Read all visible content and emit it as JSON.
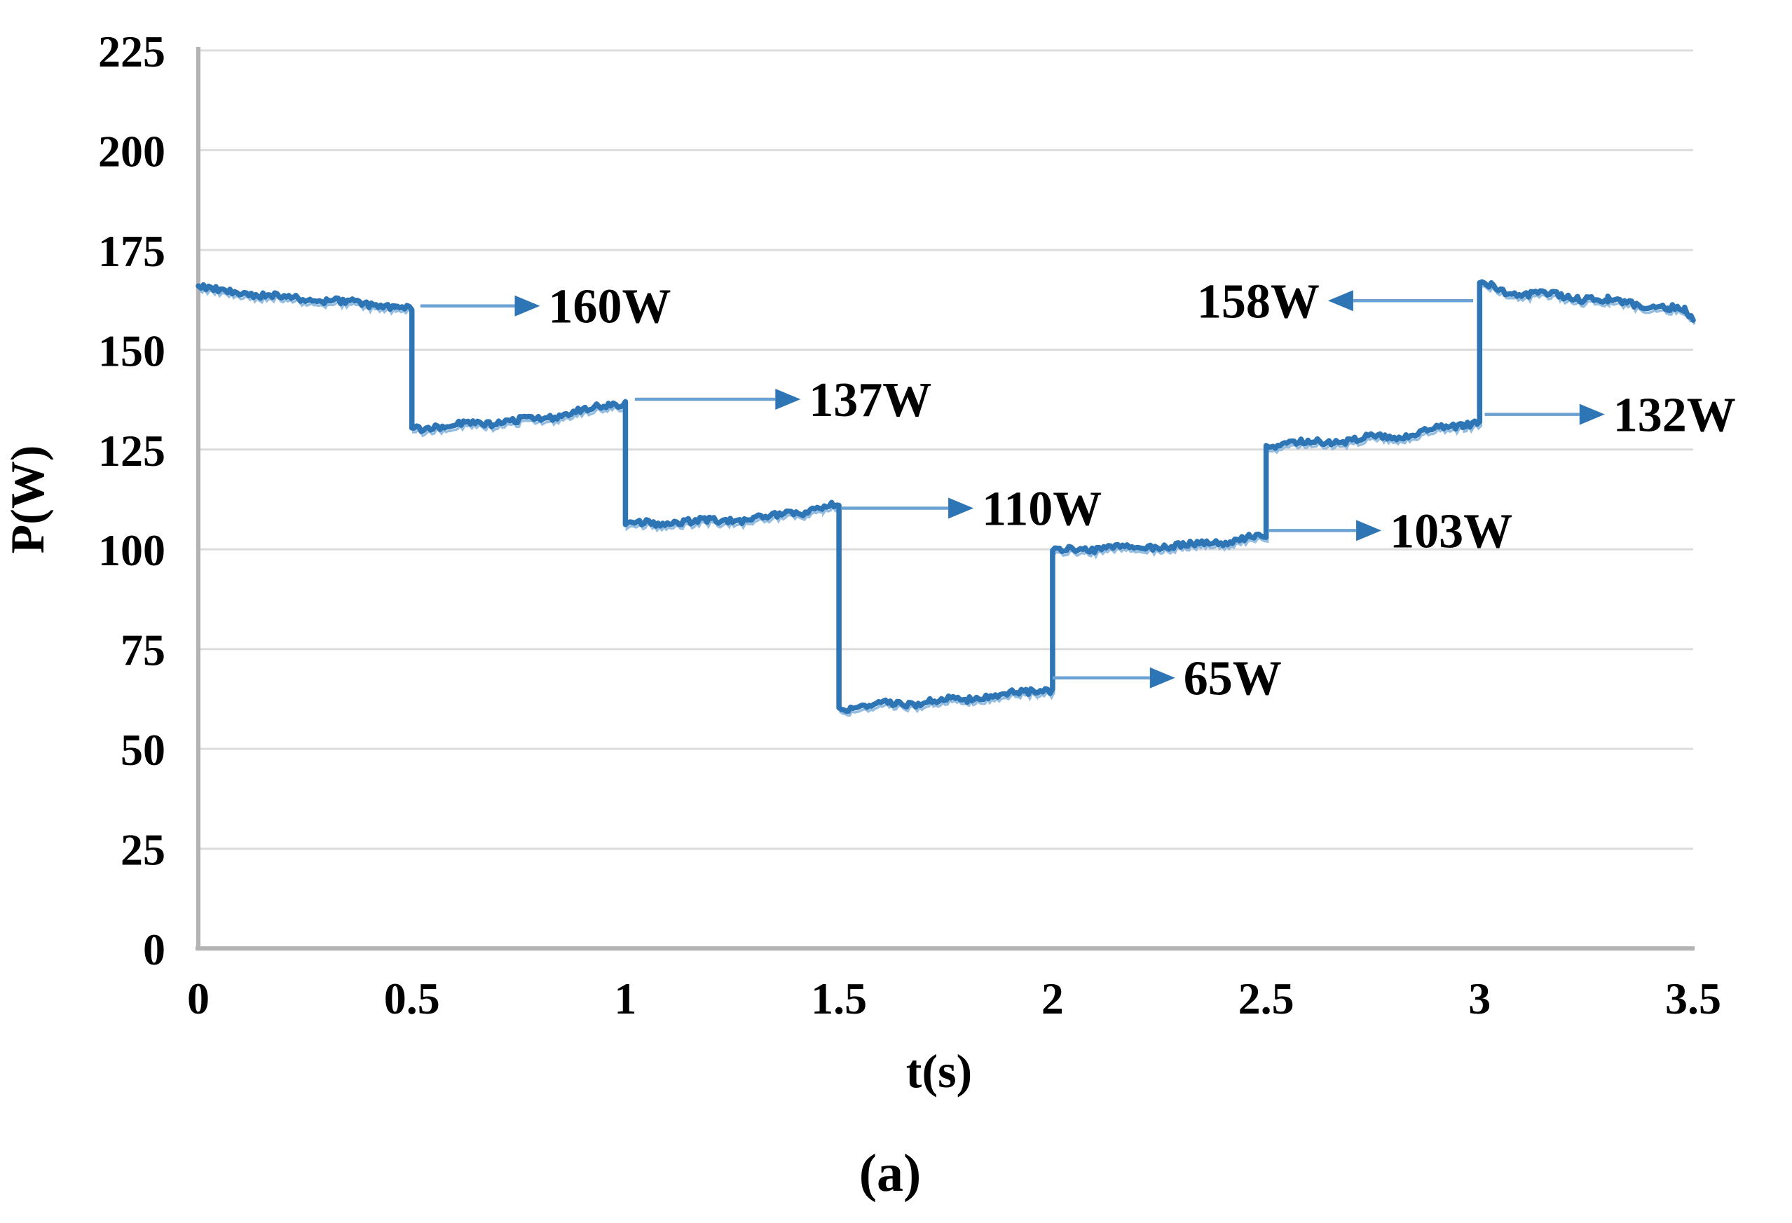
{
  "figure": {
    "caption": "(a)"
  },
  "chart_data": {
    "type": "line",
    "title": "",
    "xlabel": "t(s)",
    "ylabel": "P(W)",
    "xlim": [
      0,
      3.5
    ],
    "ylim": [
      0,
      225
    ],
    "x_ticks": [
      "0",
      "0.5",
      "1",
      "1.5",
      "2",
      "2.5",
      "3",
      "3.5"
    ],
    "y_ticks": [
      "0",
      "25",
      "50",
      "75",
      "100",
      "125",
      "150",
      "175",
      "200",
      "225"
    ],
    "grid": "horizontal",
    "legend_position": "none",
    "colors": {
      "line": "#2e75b6",
      "line_echo": "#8ab6dd",
      "arrow_line": "#6ba2d3",
      "arrow_head": "#2e75b6",
      "grid": "#dcdcdc",
      "axis": "#b3b3b3",
      "text": "#000000",
      "background": "#ffffff"
    },
    "series": [
      {
        "name": "power-trace",
        "segments": [
          {
            "points": [
              [
                0,
                166
              ],
              [
                0.03,
                164.9
              ],
              [
                0.3,
                162.2
              ],
              [
                0.46,
                160.9
              ],
              [
                0.5,
                160
              ]
            ]
          },
          {
            "points": [
              [
                0.5,
                130.4
              ],
              [
                0.78,
                132.4
              ],
              [
                0.96,
                136.0
              ],
              [
                1.0,
                137
              ]
            ]
          },
          {
            "points": [
              [
                1.0,
                106.2
              ],
              [
                1.3,
                107.6
              ],
              [
                1.46,
                110.3
              ],
              [
                1.5,
                111
              ]
            ]
          },
          {
            "points": [
              [
                1.5,
                60.3
              ],
              [
                1.8,
                62.5
              ],
              [
                1.96,
                64.5
              ],
              [
                2.0,
                65
              ]
            ]
          },
          {
            "points": [
              [
                2.0,
                99.7
              ],
              [
                2.3,
                100.9
              ],
              [
                2.46,
                102.7
              ],
              [
                2.5,
                103
              ]
            ]
          },
          {
            "points": [
              [
                2.5,
                126.0
              ],
              [
                2.8,
                128.2
              ],
              [
                2.96,
                131.3
              ],
              [
                3.0,
                132
              ]
            ]
          },
          {
            "points": [
              [
                3.0,
                166.8
              ],
              [
                3.06,
                164.6
              ],
              [
                3.3,
                162.4
              ],
              [
                3.44,
                160.4
              ],
              [
                3.48,
                159.8
              ],
              [
                3.5,
                157.4
              ]
            ]
          }
        ]
      }
    ],
    "annotations": [
      {
        "label": "160W",
        "level_w": 161.0,
        "tail_t": 0.52,
        "tip_t": 0.8,
        "dir": "right"
      },
      {
        "label": "137W",
        "level_w": 137.6,
        "tail_t": 1.022,
        "tip_t": 1.41,
        "dir": "right"
      },
      {
        "label": "110W",
        "level_w": 110.3,
        "tail_t": 1.505,
        "tip_t": 1.815,
        "dir": "right"
      },
      {
        "label": "65W",
        "level_w": 67.8,
        "tail_t": 2.0,
        "tip_t": 2.287,
        "dir": "right"
      },
      {
        "label": "103W",
        "level_w": 104.7,
        "tail_t": 2.507,
        "tip_t": 2.77,
        "dir": "right"
      },
      {
        "label": "132W",
        "level_w": 133.8,
        "tail_t": 3.012,
        "tip_t": 3.293,
        "dir": "right"
      },
      {
        "label": "158W",
        "level_w": 162.3,
        "tail_t": 2.985,
        "tip_t": 2.645,
        "dir": "left"
      }
    ]
  }
}
